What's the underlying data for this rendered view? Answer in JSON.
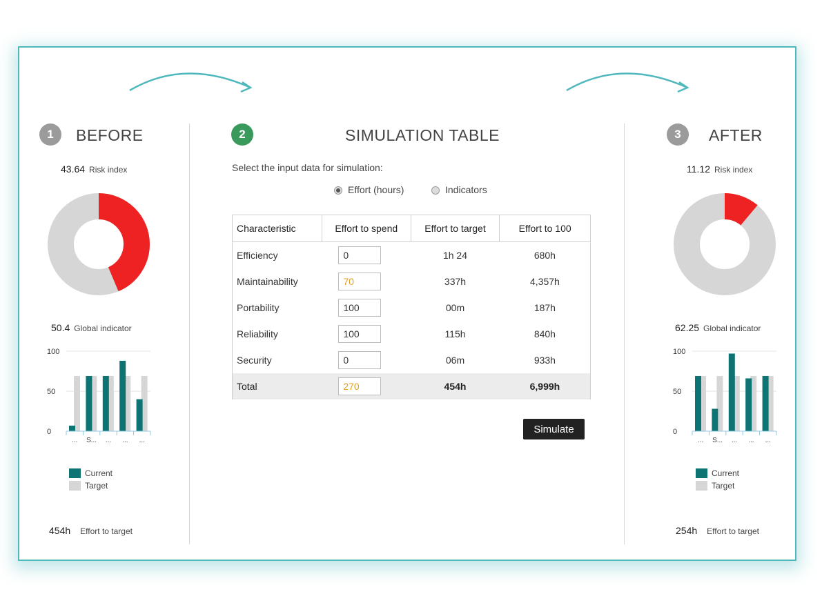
{
  "before": {
    "step": "1",
    "title": "BEFORE",
    "risk_value": "43.64",
    "risk_label": "Risk index",
    "global_value": "50.4",
    "global_label": "Global indicator",
    "effort_value": "454h",
    "effort_label": "Effort to target"
  },
  "simulation": {
    "step": "2",
    "title": "SIMULATION TABLE",
    "prompt": "Select the input data for simulation:",
    "radio_effort": "Effort (hours)",
    "radio_indicators": "Indicators",
    "columns": [
      "Characteristic",
      "Effort to spend",
      "Effort to target",
      "Effort to 100"
    ],
    "rows": [
      {
        "name": "Efficiency",
        "spend": "0",
        "target": "1h 24",
        "to100": "680h"
      },
      {
        "name": "Maintainability",
        "spend": "70",
        "target": "337h",
        "to100": "4,357h"
      },
      {
        "name": "Portability",
        "spend": "100",
        "target": "00m",
        "to100": "187h"
      },
      {
        "name": "Reliability",
        "spend": "100",
        "target": "115h",
        "to100": "840h"
      },
      {
        "name": "Security",
        "spend": "0",
        "target": "06m",
        "to100": "933h"
      }
    ],
    "total": {
      "name": "Total",
      "spend": "270",
      "target": "454h",
      "to100": "6,999h"
    },
    "button": "Simulate"
  },
  "after": {
    "step": "3",
    "title": "AFTER",
    "risk_value": "11.12",
    "risk_label": "Risk index",
    "global_value": "62.25",
    "global_label": "Global indicator",
    "effort_value": "254h",
    "effort_label": "Effort to target"
  },
  "legend": {
    "current": "Current",
    "target": "Target"
  },
  "colors": {
    "accent": "#4fb8bd",
    "risk": "#ee2222",
    "current": "#0d7373",
    "target": "#d6d6d6",
    "changed": "#e0a020"
  },
  "chart_data": [
    {
      "type": "pie",
      "title": "Risk index",
      "values": [
        43.64,
        56.36
      ],
      "labels": [
        "risk",
        "remainder"
      ]
    },
    {
      "type": "bar",
      "categories": [
        "...",
        "S...",
        "...",
        "...",
        "..."
      ],
      "series": [
        {
          "name": "Current",
          "values": [
            7,
            69,
            69,
            88,
            40
          ]
        },
        {
          "name": "Target",
          "values": [
            69,
            69,
            69,
            69,
            69
          ]
        }
      ],
      "ylim": [
        0,
        100
      ],
      "yticks": [
        "100",
        "50",
        "0"
      ]
    },
    {
      "type": "pie",
      "title": "Risk index",
      "values": [
        11.12,
        88.88
      ],
      "labels": [
        "risk",
        "remainder"
      ]
    },
    {
      "type": "bar",
      "categories": [
        "...",
        "S...",
        "...",
        "...",
        "..."
      ],
      "series": [
        {
          "name": "Current",
          "values": [
            69,
            28,
            97,
            66,
            69
          ]
        },
        {
          "name": "Target",
          "values": [
            69,
            69,
            69,
            69,
            69
          ]
        }
      ],
      "ylim": [
        0,
        100
      ],
      "yticks": [
        "100",
        "50",
        "0"
      ]
    }
  ]
}
